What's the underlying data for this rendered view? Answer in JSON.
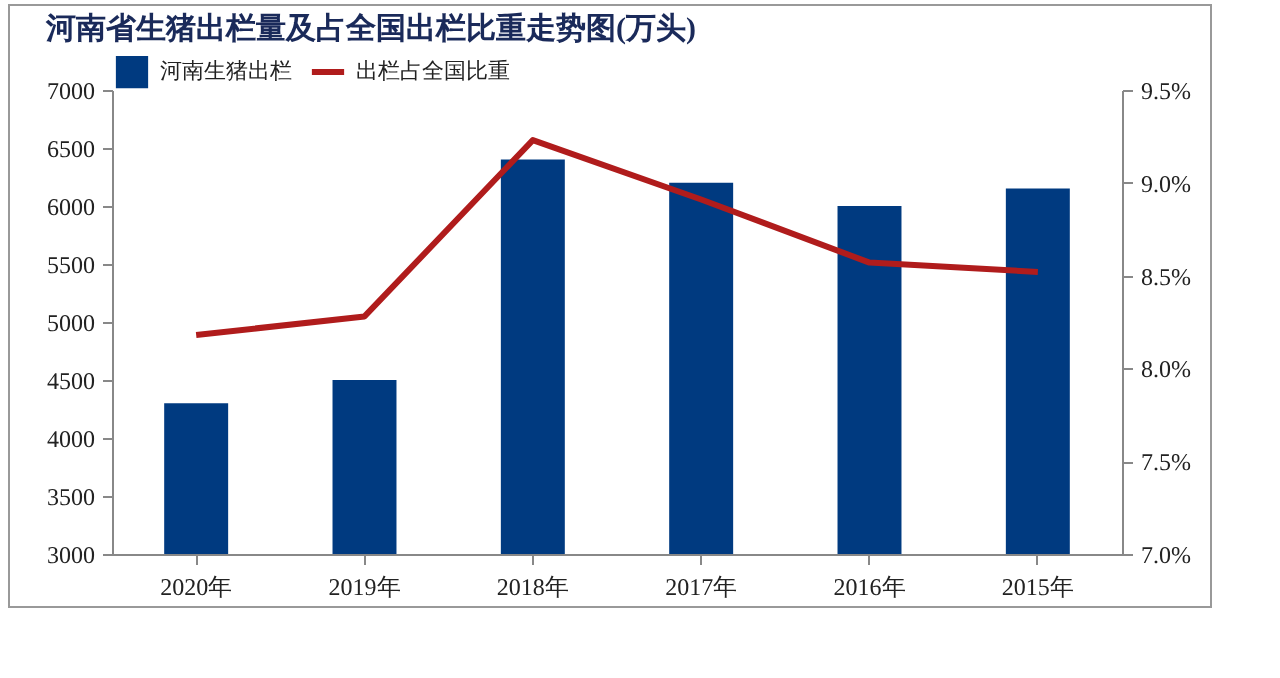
{
  "chart_data": {
    "type": "bar",
    "title": "河南省生猪出栏量及占全国出栏比重走势图(万头)",
    "categories": [
      "2020年",
      "2019年",
      "2018年",
      "2017年",
      "2016年",
      "2015年"
    ],
    "series": [
      {
        "name": "河南生猪出栏",
        "color": "#003a80",
        "values": [
          4300,
          4500,
          6400,
          6200,
          6000,
          6150
        ]
      },
      {
        "name": "出栏占全国比重",
        "type": "line",
        "axis": "y2",
        "color": "#b01c1c",
        "values": [
          8.18,
          8.28,
          9.23,
          8.91,
          8.57,
          8.52
        ]
      }
    ],
    "ylim": [
      3000,
      7000
    ],
    "yticks": [
      3000,
      3500,
      4000,
      4500,
      5000,
      5500,
      6000,
      6500,
      7000
    ],
    "y2lim": [
      7.0,
      9.5
    ],
    "y2ticks": [
      {
        "value": 7.0,
        "label": "7.0%"
      },
      {
        "value": 7.5,
        "label": "7.5%"
      },
      {
        "value": 8.0,
        "label": "8.0%"
      },
      {
        "value": 8.5,
        "label": "8.5%"
      },
      {
        "value": 9.0,
        "label": "9.0%"
      },
      {
        "value": 9.5,
        "label": "9.5%"
      }
    ],
    "grid": false,
    "legend": "top",
    "marker": "none",
    "line_style": "solid"
  }
}
